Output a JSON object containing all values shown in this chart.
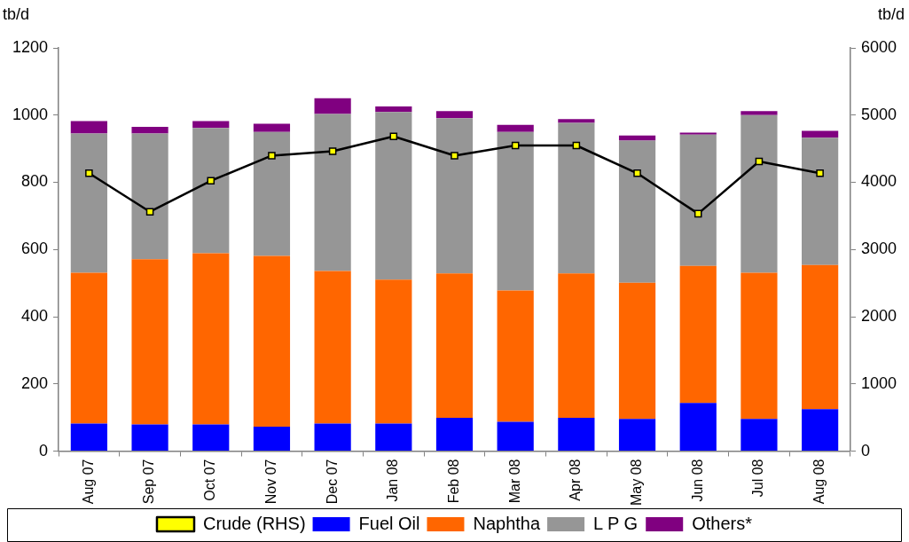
{
  "chart_data": {
    "type": "bar",
    "stacked": true,
    "ylabel": "tb/d",
    "y2label": "tb/d",
    "categories": [
      "Aug 07",
      "Sep 07",
      "Oct 07",
      "Nov 07",
      "Dec 07",
      "Jan 08",
      "Feb 08",
      "Mar 08",
      "Apr 08",
      "May 08",
      "Jun 08",
      "Jul 08",
      "Aug 08"
    ],
    "series": [
      {
        "name": "Fuel Oil",
        "color": "#0000ff",
        "values": [
          82,
          79,
          79,
          73,
          82,
          82,
          99,
          87,
          99,
          96,
          143,
          96,
          125
        ]
      },
      {
        "name": "Naphtha",
        "color": "#ff6600",
        "values": [
          449,
          492,
          510,
          508,
          454,
          428,
          430,
          391,
          430,
          405,
          408,
          435,
          429
        ]
      },
      {
        "name": "L P G",
        "color": "#969696",
        "values": [
          414,
          374,
          373,
          369,
          467,
          499,
          462,
          472,
          448,
          423,
          391,
          469,
          379
        ]
      },
      {
        "name": "Others*",
        "color": "#800080",
        "values": [
          37,
          20,
          20,
          24,
          47,
          17,
          21,
          21,
          11,
          15,
          6,
          12,
          20
        ]
      },
      {
        "name": "Crude (RHS)",
        "type": "line",
        "axis": "y2",
        "color": "#000000",
        "marker": "square",
        "values": [
          4135,
          3562,
          4023,
          4397,
          4461,
          4684,
          4397,
          4548,
          4548,
          4135,
          3533,
          4310,
          4135
        ]
      }
    ],
    "ylim": [
      0,
      1200
    ],
    "yticks": [
      0,
      200,
      400,
      600,
      800,
      1000,
      1200
    ],
    "y2lim": [
      0,
      6000
    ],
    "y2ticks": [
      0,
      1000,
      2000,
      3000,
      4000,
      5000,
      6000
    ],
    "grid": false,
    "legend": "bottom"
  }
}
